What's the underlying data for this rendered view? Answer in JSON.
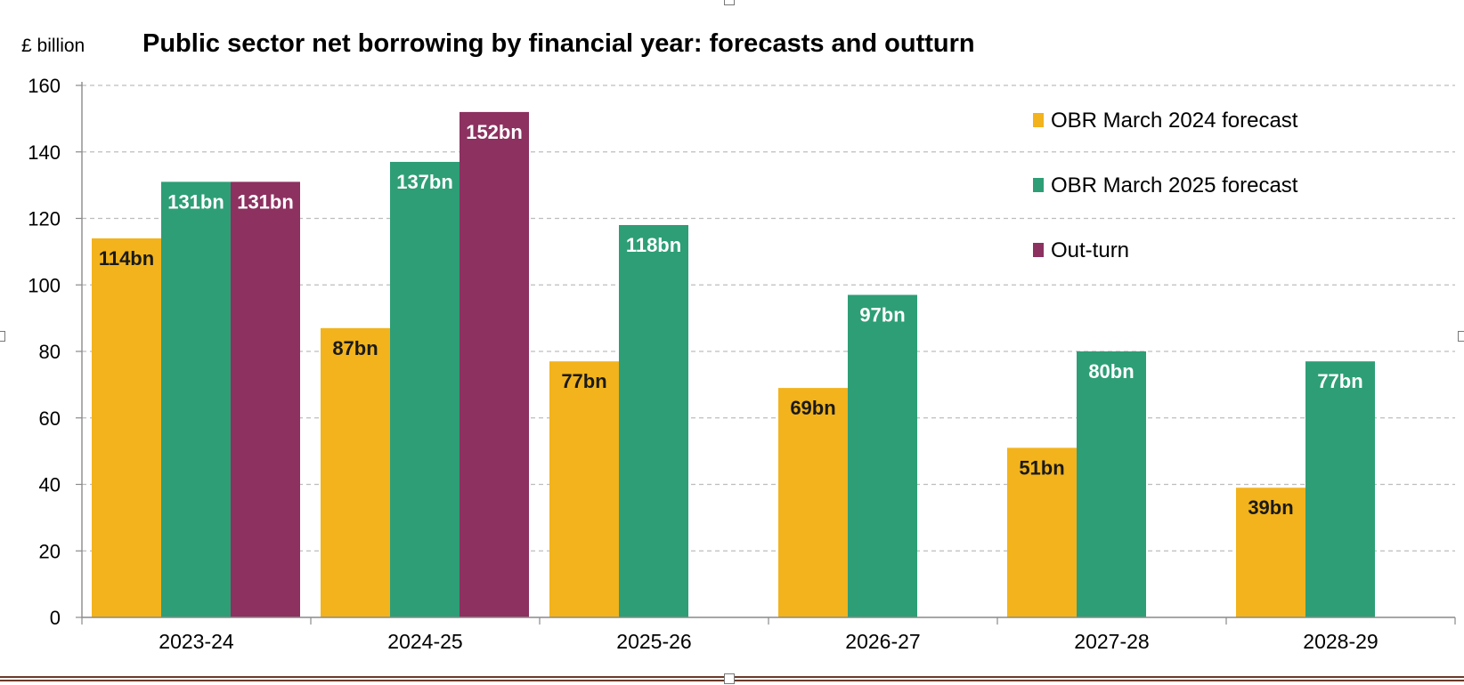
{
  "chart_data": {
    "type": "bar",
    "title": "Public sector net borrowing by financial year: forecasts and outturn",
    "ylabel": "£ billion",
    "xlabel": "",
    "ylim": [
      0,
      160
    ],
    "yticks": [
      0,
      20,
      40,
      60,
      80,
      100,
      120,
      140,
      160
    ],
    "grid": true,
    "legend_position": "top-right",
    "categories": [
      "2023-24",
      "2024-25",
      "2025-26",
      "2026-27",
      "2027-28",
      "2028-29"
    ],
    "series": [
      {
        "name": "OBR March 2024 forecast",
        "color": "#f2b31c",
        "label_color": "#1a1a1a",
        "values": [
          114,
          87,
          77,
          69,
          51,
          39
        ],
        "labels": [
          "114bn",
          "87bn",
          "77bn",
          "69bn",
          "51bn",
          "39bn"
        ]
      },
      {
        "name": "OBR March 2025 forecast",
        "color": "#2e9e76",
        "label_color": "#ffffff",
        "values": [
          131,
          137,
          118,
          97,
          80,
          77
        ],
        "labels": [
          "131bn",
          "137bn",
          "118bn",
          "97bn",
          "80bn",
          "77bn"
        ]
      },
      {
        "name": "Out-turn",
        "color": "#8c3160",
        "label_color": "#ffffff",
        "values": [
          131,
          152,
          null,
          null,
          null,
          null
        ],
        "labels": [
          "131bn",
          "152bn",
          "",
          "",
          "",
          ""
        ]
      }
    ]
  }
}
